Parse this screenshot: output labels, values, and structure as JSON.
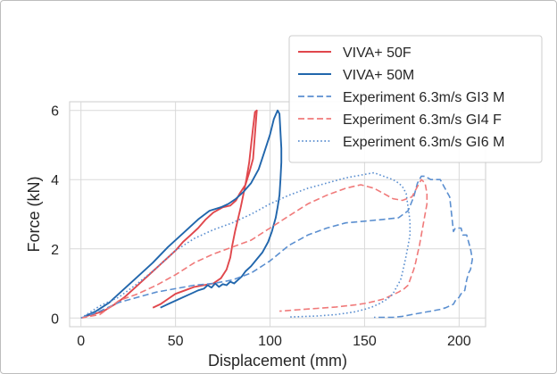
{
  "chart_data": {
    "type": "line",
    "xlabel": "Displacement (mm)",
    "ylabel": "Force (kN)",
    "xlim": [
      -6,
      214
    ],
    "ylim": [
      -0.25,
      6.25
    ],
    "xticks": [
      0,
      50,
      100,
      150,
      200
    ],
    "yticks": [
      0,
      2,
      4,
      6
    ],
    "grid": true,
    "legend_position": "top-right",
    "series": [
      {
        "name": "VIVA+ 50F",
        "color": "#e0474c",
        "style": "solid",
        "x": [
          38,
          42,
          46,
          50,
          55,
          60,
          65,
          70,
          74,
          77,
          79,
          80,
          81.5,
          83,
          84.5,
          86,
          87.5,
          89,
          90,
          91,
          92,
          93,
          91,
          89,
          87,
          84,
          82,
          79,
          75,
          70,
          66,
          62,
          58,
          54,
          50,
          46,
          42,
          38,
          33,
          28,
          23,
          18,
          12,
          6,
          2
        ],
        "y": [
          0.3,
          0.4,
          0.55,
          0.7,
          0.8,
          0.9,
          0.95,
          1.0,
          1.15,
          1.4,
          1.75,
          2.1,
          2.5,
          2.85,
          3.2,
          3.6,
          4.0,
          4.5,
          5.0,
          5.5,
          5.95,
          6.0,
          4.6,
          4.2,
          3.85,
          3.6,
          3.4,
          3.25,
          3.2,
          3.05,
          2.85,
          2.6,
          2.4,
          2.2,
          1.95,
          1.75,
          1.55,
          1.35,
          1.1,
          0.85,
          0.6,
          0.4,
          0.2,
          0.1,
          0.05
        ]
      },
      {
        "name": "VIVA+ 50M",
        "color": "#2166ac",
        "style": "solid",
        "x": [
          2,
          8,
          15,
          22,
          30,
          38,
          46,
          54,
          62,
          68,
          74,
          78,
          82,
          86,
          90,
          94,
          97,
          100,
          102,
          104,
          105,
          106,
          106,
          105.5,
          105,
          104,
          103,
          101,
          99,
          96,
          93,
          90,
          87,
          85,
          83,
          81,
          79,
          77,
          75,
          73,
          71,
          69,
          67,
          65,
          62,
          58,
          54,
          50,
          46,
          42
        ],
        "y": [
          0.05,
          0.2,
          0.45,
          0.8,
          1.2,
          1.6,
          2.05,
          2.45,
          2.85,
          3.1,
          3.2,
          3.3,
          3.45,
          3.65,
          3.9,
          4.3,
          4.8,
          5.3,
          5.75,
          6.0,
          5.9,
          4.9,
          4.5,
          4.0,
          3.55,
          3.2,
          2.9,
          2.5,
          2.2,
          1.9,
          1.7,
          1.5,
          1.35,
          1.2,
          1.1,
          1.0,
          1.05,
          0.95,
          0.98,
          0.9,
          1.0,
          0.88,
          0.95,
          0.85,
          0.8,
          0.7,
          0.6,
          0.5,
          0.4,
          0.3
        ]
      },
      {
        "name": "Experiment 6.3m/s GI3 M",
        "color": "#5b8fd0",
        "style": "dashed",
        "x": [
          0,
          10,
          20,
          30,
          40,
          50,
          60,
          70,
          80,
          90,
          100,
          110,
          120,
          130,
          140,
          150,
          160,
          168,
          173,
          176,
          178,
          180,
          182,
          185,
          190,
          192,
          195,
          196,
          197,
          198,
          201,
          202,
          204,
          206,
          207,
          206,
          205,
          204,
          203,
          201,
          200,
          199,
          198,
          197,
          195,
          193,
          190,
          185,
          180,
          175,
          170,
          165,
          160,
          155
        ],
        "y": [
          0,
          0.2,
          0.45,
          0.6,
          0.75,
          0.85,
          0.95,
          1.0,
          1.1,
          1.3,
          1.65,
          2.1,
          2.4,
          2.6,
          2.75,
          2.8,
          2.85,
          2.9,
          3.1,
          3.5,
          3.9,
          4.1,
          4.1,
          4.0,
          4.0,
          3.8,
          3.5,
          3.0,
          2.5,
          2.6,
          2.6,
          2.4,
          2.4,
          2.0,
          1.7,
          1.4,
          1.3,
          1.1,
          0.8,
          0.7,
          0.6,
          0.55,
          0.5,
          0.4,
          0.35,
          0.3,
          0.25,
          0.2,
          0.15,
          0.1,
          0.05,
          0.02,
          0.02,
          0.02
        ]
      },
      {
        "name": "Experiment 6.3m/s GI4 F",
        "color": "#f07a7a",
        "style": "dashed",
        "x": [
          0,
          10,
          20,
          30,
          40,
          50,
          60,
          70,
          80,
          90,
          100,
          110,
          120,
          130,
          140,
          148,
          155,
          160,
          165,
          170,
          175,
          178,
          180,
          182,
          183,
          183,
          182,
          181,
          180,
          179,
          178,
          177,
          176,
          175,
          174,
          173,
          171,
          168,
          164,
          160,
          155,
          150,
          145,
          140,
          135,
          130,
          125,
          120,
          115,
          110,
          105
        ],
        "y": [
          0,
          0.1,
          0.5,
          0.7,
          0.95,
          1.25,
          1.6,
          1.85,
          2.05,
          2.25,
          2.6,
          2.95,
          3.3,
          3.55,
          3.75,
          3.85,
          3.75,
          3.6,
          3.45,
          3.4,
          3.5,
          3.8,
          4.0,
          3.9,
          3.6,
          3.3,
          3.0,
          2.7,
          2.4,
          2.1,
          1.85,
          1.6,
          1.4,
          1.25,
          1.1,
          0.95,
          0.85,
          0.75,
          0.65,
          0.55,
          0.48,
          0.42,
          0.38,
          0.35,
          0.32,
          0.3,
          0.28,
          0.26,
          0.24,
          0.22,
          0.2
        ]
      },
      {
        "name": "Experiment 6.3m/s GI6 M",
        "color": "#5b8fd0",
        "style": "dotted",
        "x": [
          0,
          10,
          20,
          30,
          40,
          50,
          60,
          70,
          80,
          90,
          100,
          110,
          120,
          130,
          140,
          150,
          155,
          160,
          165,
          168,
          170,
          172,
          173,
          174,
          174,
          173,
          172,
          171,
          170,
          169,
          167,
          165,
          162,
          158,
          154,
          150,
          145,
          140,
          135,
          130,
          125,
          120,
          115,
          110
        ],
        "y": [
          0,
          0.35,
          0.6,
          1.0,
          1.45,
          1.95,
          2.3,
          2.55,
          2.75,
          3.0,
          3.3,
          3.55,
          3.75,
          3.9,
          4.05,
          4.15,
          4.2,
          4.1,
          4.0,
          3.9,
          3.8,
          3.6,
          3.2,
          2.8,
          2.4,
          2.1,
          1.8,
          1.55,
          1.3,
          1.1,
          0.9,
          0.7,
          0.55,
          0.42,
          0.32,
          0.25,
          0.18,
          0.14,
          0.1,
          0.08,
          0.06,
          0.05,
          0.04,
          0.03
        ]
      }
    ]
  }
}
